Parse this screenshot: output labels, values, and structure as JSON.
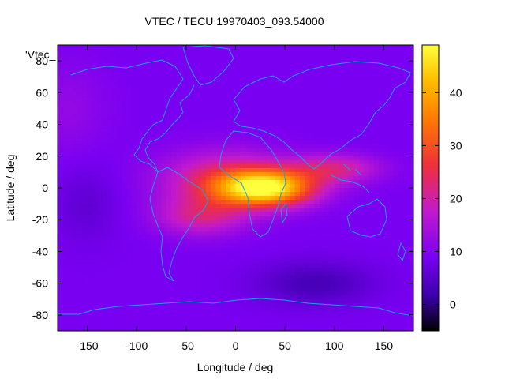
{
  "chart_data": {
    "type": "heatmap",
    "title": "VTEC / TECU 19970403_093.54000",
    "xlabel": "Longitude / deg",
    "ylabel": "Latitude / deg",
    "legend_label": "'Vtec_",
    "xlim": [
      -180,
      180
    ],
    "ylim": [
      -90,
      90
    ],
    "x_ticks": [
      -150,
      -100,
      -50,
      0,
      50,
      100,
      150
    ],
    "x_tick_labels": [
      "-150",
      "-100",
      "-50",
      "0",
      "50",
      "100",
      "150"
    ],
    "y_ticks": [
      -80,
      -60,
      -40,
      -20,
      0,
      20,
      40,
      60,
      80
    ],
    "y_tick_labels": [
      "-80",
      "-60",
      "-40",
      "-20",
      "0",
      "20",
      "40",
      "60",
      "80"
    ],
    "colorbar": {
      "range": [
        -5,
        49
      ],
      "ticks": [
        0,
        10,
        20,
        30,
        40
      ],
      "tick_labels": [
        "0",
        "10",
        "20",
        "30",
        "40"
      ],
      "colors": [
        "#000000",
        "#3a00a8",
        "#7a00f2",
        "#c21acc",
        "#f0303a",
        "#ff7a00",
        "#ffc000",
        "#ffff3c"
      ]
    },
    "grid_resolution_deg": {
      "lon": 5,
      "lat": 2.5
    },
    "field_description": "Equatorial ionization anomaly: peak ~48 TECU near lon 30, lat 0; background ~8-12 TECU; low ~3 TECU near lon 80, lat -60",
    "peaks": [
      {
        "lon": 30,
        "lat": 0,
        "value": 48
      },
      {
        "lon": -20,
        "lat": 8,
        "value": 30
      },
      {
        "lon": 110,
        "lat": 12,
        "value": 24
      },
      {
        "lon": -40,
        "lat": -18,
        "value": 24
      }
    ],
    "background_tecu": 9,
    "low": {
      "lon": 80,
      "lat": -60,
      "value": 3
    }
  }
}
